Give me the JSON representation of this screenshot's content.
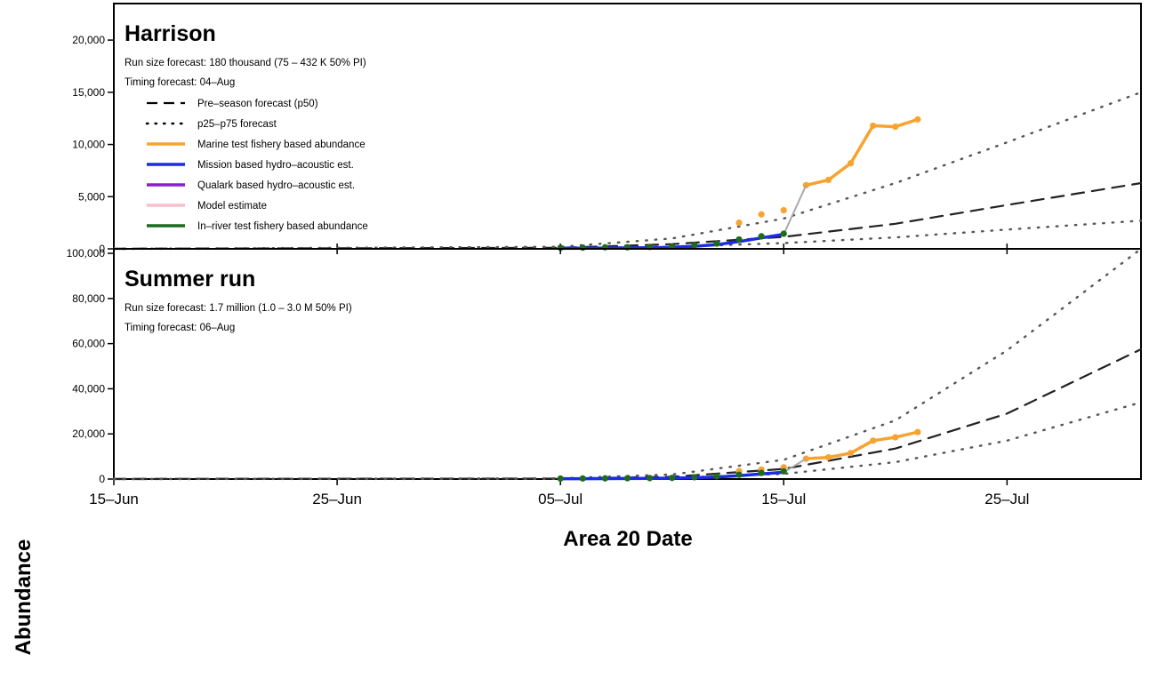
{
  "figure": {
    "xlabel": "Area 20 Date",
    "ylabel": "Abundance"
  },
  "legend": [
    {
      "label": "Pre–season forecast (p50)",
      "style": "dashed",
      "color": "#000000"
    },
    {
      "label": "p25–p75 forecast",
      "style": "dotted",
      "color": "#000000"
    },
    {
      "label": "Marine test fishery based abundance",
      "style": "solid",
      "color": "#F7A330"
    },
    {
      "label": "Mission based hydro–acoustic est.",
      "style": "solid",
      "color": "#1C2BE6"
    },
    {
      "label": "Qualark based hydro–acoustic est.",
      "style": "solid",
      "color": "#8A1FD0"
    },
    {
      "label": "Model estimate",
      "style": "solid",
      "color": "#F7BFCB"
    },
    {
      "label": "In–river test fishery based abundance",
      "style": "solid",
      "color": "#1D6B1D"
    }
  ],
  "chart_data": [
    {
      "type": "line",
      "title": "Harrison",
      "subtitle_lines": [
        "Run size forecast: 180 thousand (75 – 432 K 50% PI)",
        "Timing forecast: 04–Aug"
      ],
      "xlabel": "Area 20 Date",
      "ylabel": "Abundance",
      "x_ticks": [
        "15–Jun",
        "25–Jun",
        "05–Jul",
        "15–Jul",
        "25–Jul"
      ],
      "y_ticks": [
        "0",
        "5,000",
        "10,000",
        "15,000",
        "20,000"
      ],
      "ylim": [
        0,
        23500
      ],
      "xlim": [
        "15–Jun",
        "31–Jul"
      ],
      "legend_position": "top-left",
      "series": [
        {
          "name": "Pre–season forecast (p50)",
          "style": "dashed",
          "color": "#000000",
          "x": [
            "15–Jun",
            "05–Jul",
            "10–Jul",
            "15–Jul",
            "20–Jul",
            "25–Jul",
            "31–Jul"
          ],
          "y": [
            0,
            100,
            450,
            1150,
            2400,
            4200,
            6300
          ]
        },
        {
          "name": "p25–p75 forecast",
          "style": "dotted",
          "color": "#000000",
          "x": [
            "15–Jun",
            "05–Jul",
            "10–Jul",
            "15–Jul",
            "20–Jul",
            "25–Jul",
            "31–Jul"
          ],
          "y": [
            0,
            200,
            1000,
            2900,
            6300,
            10200,
            15000
          ]
        },
        {
          "name": "p25–p75 forecast",
          "style": "dotted",
          "color": "#000000",
          "x": [
            "15–Jun",
            "05–Jul",
            "10–Jul",
            "15–Jul",
            "20–Jul",
            "25–Jul",
            "31–Jul"
          ],
          "y": [
            0,
            50,
            200,
            550,
            1100,
            1850,
            2700
          ]
        },
        {
          "name": "Marine test fishery based abundance",
          "style": "line-points",
          "color": "#F7A330",
          "x": [
            "16–Jul",
            "17–Jul",
            "18–Jul",
            "19–Jul",
            "20–Jul",
            "21–Jul"
          ],
          "y": [
            6100,
            6600,
            8200,
            11800,
            11700,
            12400
          ]
        },
        {
          "name": "Marine test fishery based abundance",
          "style": "points",
          "color": "#F7A330",
          "x": [
            "13–Jul",
            "14–Jul",
            "15–Jul"
          ],
          "y": [
            2500,
            3300,
            3700
          ]
        },
        {
          "name": "Mission based hydro–acoustic est.",
          "style": "line",
          "color": "#1C2BE6",
          "x": [
            "05–Jul",
            "06–Jul",
            "07–Jul",
            "08–Jul",
            "09–Jul",
            "10–Jul",
            "11–Jul",
            "12–Jul",
            "13–Jul",
            "14–Jul",
            "15–Jul"
          ],
          "y": [
            50,
            60,
            80,
            90,
            110,
            150,
            250,
            400,
            700,
            1050,
            1400
          ]
        },
        {
          "name": "connector",
          "style": "line",
          "color": "#AAAAAA",
          "x": [
            "15–Jul",
            "16–Jul"
          ],
          "y": [
            1400,
            6100
          ]
        },
        {
          "name": "In–river test fishery based abundance",
          "style": "points",
          "color": "#1D6B1D",
          "x": [
            "05–Jul",
            "06–Jul",
            "07–Jul",
            "08–Jul",
            "09–Jul",
            "10–Jul",
            "11–Jul",
            "12–Jul",
            "13–Jul",
            "14–Jul",
            "15–Jul"
          ],
          "y": [
            100,
            120,
            150,
            150,
            180,
            220,
            350,
            500,
            900,
            1200,
            1450
          ]
        }
      ]
    },
    {
      "type": "line",
      "title": "Summer run",
      "subtitle_lines": [
        "Run size forecast: 1.7 million (1.0 – 3.0 M 50% PI)",
        "Timing forecast: 06–Aug"
      ],
      "xlabel": "Area 20 Date",
      "ylabel": "Abundance",
      "x_ticks": [
        "15–Jun",
        "25–Jun",
        "05–Jul",
        "15–Jul",
        "25–Jul"
      ],
      "y_ticks": [
        "0",
        "20,000",
        "40,000",
        "60,000",
        "80,000",
        "100,000"
      ],
      "ylim": [
        0,
        102000
      ],
      "xlim": [
        "15–Jun",
        "31–Jul"
      ],
      "series": [
        {
          "name": "Pre–season forecast (p50)",
          "style": "dashed",
          "color": "#000000",
          "x": [
            "15–Jun",
            "05–Jul",
            "10–Jul",
            "15–Jul",
            "20–Jul",
            "25–Jul",
            "31–Jul"
          ],
          "y": [
            0,
            150,
            1000,
            4500,
            13500,
            29000,
            57500
          ]
        },
        {
          "name": "p25–p75 forecast",
          "style": "dotted",
          "color": "#000000",
          "x": [
            "15–Jun",
            "05–Jul",
            "10–Jul",
            "15–Jul",
            "20–Jul",
            "25–Jul",
            "31–Jul"
          ],
          "y": [
            0,
            300,
            2000,
            8500,
            26000,
            57000,
            102000
          ]
        },
        {
          "name": "p25–p75 forecast",
          "style": "dotted",
          "color": "#000000",
          "x": [
            "15–Jun",
            "05–Jul",
            "10–Jul",
            "15–Jul",
            "20–Jul",
            "25–Jul",
            "31–Jul"
          ],
          "y": [
            0,
            80,
            500,
            2300,
            7500,
            17000,
            34000
          ]
        },
        {
          "name": "Marine test fishery based abundance",
          "style": "line-points",
          "color": "#F7A330",
          "x": [
            "16–Jul",
            "17–Jul",
            "18–Jul",
            "19–Jul",
            "20–Jul",
            "21–Jul"
          ],
          "y": [
            9000,
            9600,
            11500,
            17000,
            18500,
            20800
          ]
        },
        {
          "name": "Marine test fishery based abundance",
          "style": "points",
          "color": "#F7A330",
          "x": [
            "13–Jul",
            "14–Jul",
            "15–Jul"
          ],
          "y": [
            3500,
            4200,
            5200
          ]
        },
        {
          "name": "Mission based hydro–acoustic est.",
          "style": "line",
          "color": "#1C2BE6",
          "x": [
            "05–Jul",
            "06–Jul",
            "07–Jul",
            "08–Jul",
            "09–Jul",
            "10–Jul",
            "11–Jul",
            "12–Jul",
            "13–Jul",
            "14–Jul",
            "15–Jul"
          ],
          "y": [
            100,
            150,
            200,
            250,
            300,
            400,
            600,
            900,
            1500,
            2300,
            3000
          ]
        },
        {
          "name": "connector",
          "style": "line",
          "color": "#AAAAAA",
          "x": [
            "15–Jul",
            "16–Jul"
          ],
          "y": [
            3000,
            9000
          ]
        },
        {
          "name": "In–river test fishery based abundance",
          "style": "points",
          "color": "#1D6B1D",
          "x": [
            "05–Jul",
            "06–Jul",
            "07–Jul",
            "08–Jul",
            "09–Jul",
            "10–Jul",
            "11–Jul",
            "12–Jul",
            "13–Jul",
            "14–Jul",
            "15–Jul"
          ],
          "y": [
            200,
            250,
            300,
            350,
            400,
            500,
            800,
            1200,
            1900,
            2700,
            3400
          ]
        }
      ]
    }
  ]
}
